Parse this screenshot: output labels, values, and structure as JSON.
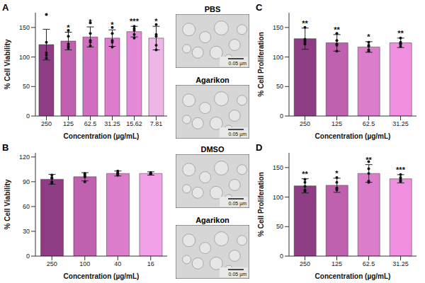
{
  "chart_data": [
    {
      "panel": "A",
      "type": "bar",
      "categories": [
        "250",
        "125",
        "62.5",
        "31.25",
        "15.62",
        "7.81"
      ],
      "values": [
        121,
        127,
        134,
        132,
        143,
        132
      ],
      "errors": [
        26,
        15,
        17,
        14,
        9,
        20
      ],
      "points": [
        [
          172,
          103,
          98,
          125,
          107
        ],
        [
          145,
          118,
          135,
          122,
          115
        ],
        [
          158,
          140,
          125,
          128,
          119
        ],
        [
          150,
          140,
          125,
          128,
          117
        ],
        [
          152,
          148,
          145,
          138,
          132
        ],
        [
          155,
          135,
          138,
          120,
          112
        ]
      ],
      "significance": [
        null,
        "*",
        "*",
        "*",
        "***",
        "*"
      ],
      "colors": [
        "#8e3d84",
        "#c061b0",
        "#d06fc0",
        "#dc7dcc",
        "#e48ad6",
        "#efb5e6"
      ],
      "ylim": [
        0,
        175
      ],
      "yticks": [
        0,
        50,
        100,
        150
      ],
      "x_label": "Concentration (µg/mL)",
      "y_label": "% Cell Viability"
    },
    {
      "panel": "B",
      "type": "bar",
      "categories": [
        "250",
        "100",
        "40",
        "16"
      ],
      "values": [
        93,
        96,
        100,
        100
      ],
      "errors": [
        6,
        5,
        3,
        2
      ],
      "points": [
        [
          88,
          95,
          98,
          90,
          94
        ],
        [
          90,
          100,
          96,
          98,
          96
        ],
        [
          103,
          98,
          101,
          100,
          98
        ],
        [
          101,
          99,
          100,
          100,
          100
        ]
      ],
      "colors": [
        "#8e3d84",
        "#c061b0",
        "#dc7dcc",
        "#f2a0e8"
      ],
      "ylim": [
        0,
        125
      ],
      "yticks": [
        0,
        30,
        60,
        90,
        120
      ],
      "x_label": "Concentration (µg/mL)",
      "y_label": "% Cell Viability"
    },
    {
      "panel": "C",
      "type": "bar",
      "categories": [
        "250",
        "125",
        "62.5",
        "31.25"
      ],
      "values": [
        131,
        124,
        117,
        124
      ],
      "errors": [
        18,
        14,
        9,
        8
      ],
      "points": [
        [
          150,
          128,
          122,
          130,
          125
        ],
        [
          140,
          128,
          110,
          122,
          120
        ],
        [
          125,
          120,
          112,
          118,
          110
        ],
        [
          132,
          125,
          118,
          122,
          123
        ]
      ],
      "significance": [
        "**",
        "**",
        "*",
        "**"
      ],
      "colors": [
        "#8e3d84",
        "#c061b0",
        "#dc7dcc",
        "#f08ee0"
      ],
      "ylim": [
        0,
        175
      ],
      "yticks": [
        0,
        50,
        100,
        150
      ],
      "x_label": "Concentration (µg/mL)",
      "y_label": "% Cell Proliferation"
    },
    {
      "panel": "D",
      "type": "bar",
      "categories": [
        "250",
        "125",
        "62.5",
        "31.25"
      ],
      "values": [
        119,
        120,
        140,
        131
      ],
      "errors": [
        12,
        12,
        15,
        7
      ],
      "points": [
        [
          130,
          125,
          110,
          118,
          112
        ],
        [
          133,
          115,
          125,
          112,
          115
        ],
        [
          160,
          148,
          140,
          125,
          127
        ],
        [
          138,
          133,
          130,
          127,
          127
        ]
      ],
      "significance": [
        "**",
        "*",
        "**",
        "***"
      ],
      "colors": [
        "#8e3d84",
        "#c061b0",
        "#dc7dcc",
        "#f08ee0"
      ],
      "ylim": [
        0,
        175
      ],
      "yticks": [
        0,
        50,
        100,
        150
      ],
      "x_label": "Concentration (µg/mL)",
      "y_label": "% Cell Proliferation"
    }
  ],
  "images": [
    {
      "title": "PBS",
      "scale_bar": "0.05 µm"
    },
    {
      "title": "Agarikon",
      "scale_bar": "0.05 µm"
    },
    {
      "title": "DMSO",
      "scale_bar": "0.05 µm"
    },
    {
      "title": "Agarikon",
      "scale_bar": "0.05 µm"
    }
  ]
}
